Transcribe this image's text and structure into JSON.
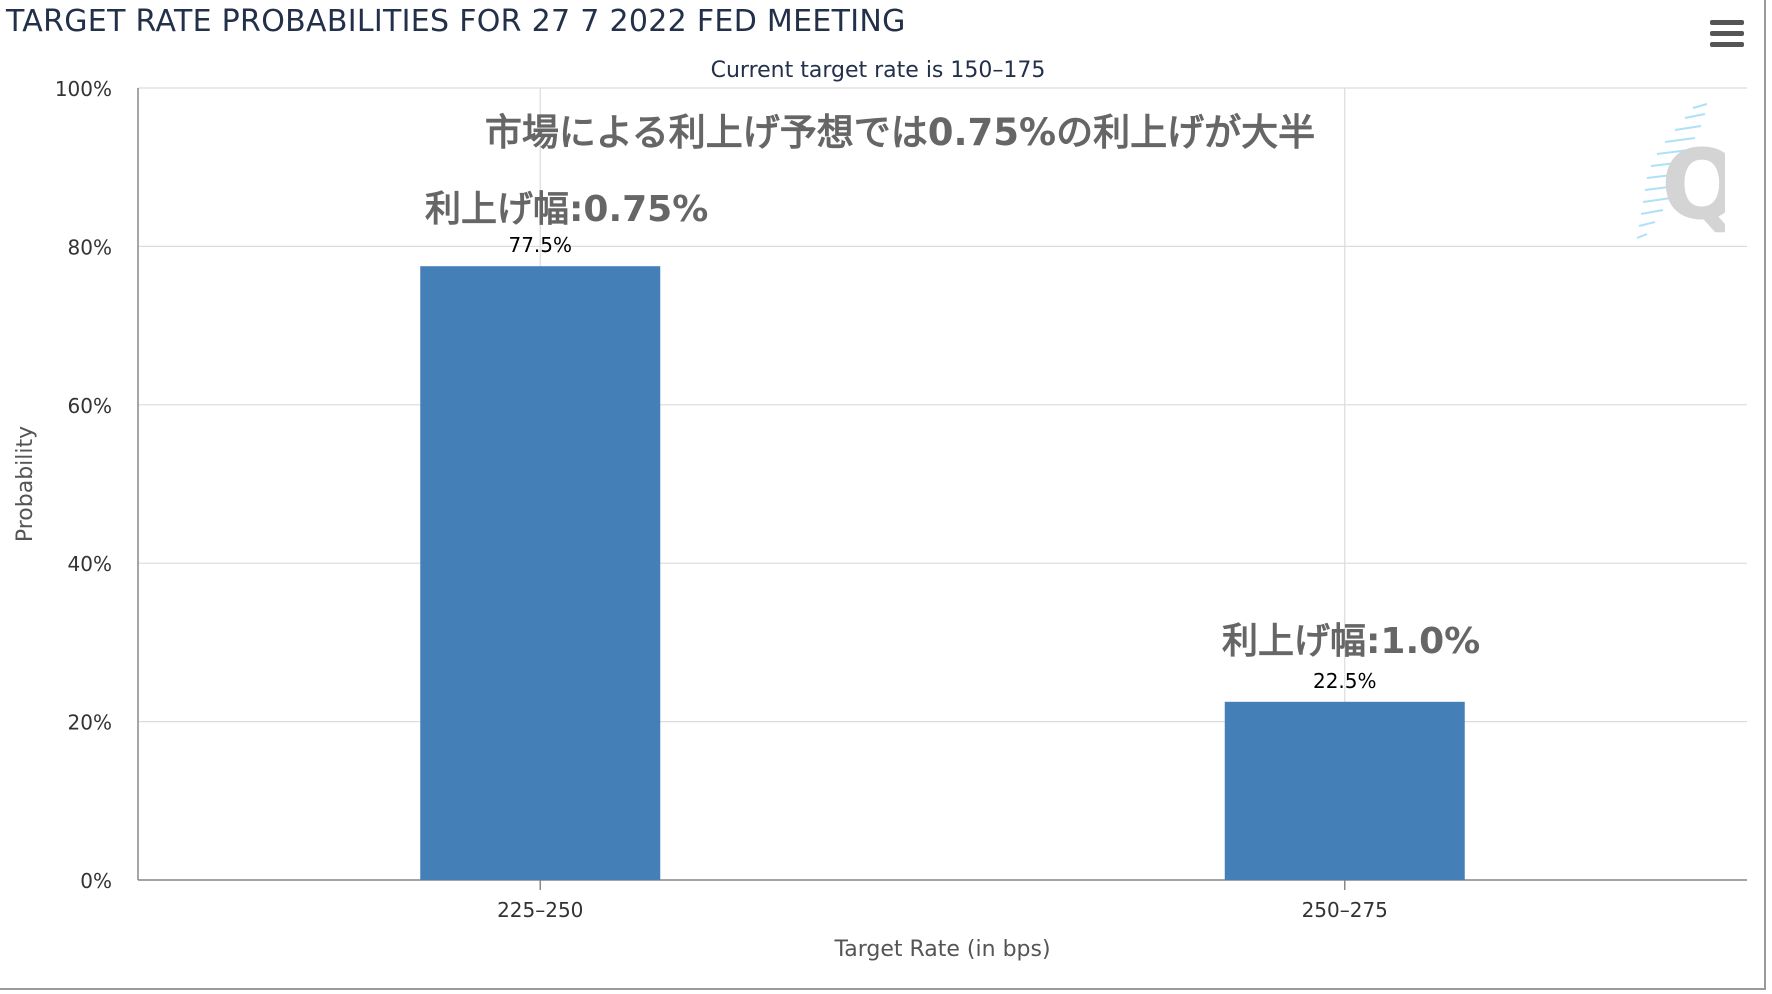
{
  "header": {
    "title": "TARGET RATE PROBABILITIES FOR 27 7 2022 FED MEETING",
    "subtitle": "Current target rate is 150–175"
  },
  "menu": {
    "icon": "hamburger-menu-icon"
  },
  "annotations": {
    "headline": "市場による利上げ予想では0.75%の利上げが大半",
    "bar_1_note": "利上げ幅:0.75%",
    "bar_2_note": "利上げ幅:1.0%"
  },
  "watermark": {
    "icon": "q-logo-icon",
    "letter": "Q"
  },
  "colors": {
    "bar": "#4480b7",
    "title": "#23304a",
    "annotation": "#666666",
    "grid": "#dcdcdc"
  },
  "chart_data": {
    "type": "bar",
    "title": "TARGET RATE PROBABILITIES FOR 27 7 2022 FED MEETING",
    "subtitle": "Current target rate is 150–175",
    "categories": [
      "225–250",
      "250–275"
    ],
    "values": [
      77.5,
      22.5
    ],
    "data_labels": [
      "77.5%",
      "22.5%"
    ],
    "xlabel": "Target Rate (in bps)",
    "ylabel": "Probability",
    "ylim": [
      0,
      100
    ],
    "yticks": [
      0,
      20,
      40,
      60,
      80,
      100
    ],
    "ytick_labels": [
      "0%",
      "20%",
      "40%",
      "60%",
      "80%",
      "100%"
    ],
    "grid": true,
    "legend": "none"
  }
}
